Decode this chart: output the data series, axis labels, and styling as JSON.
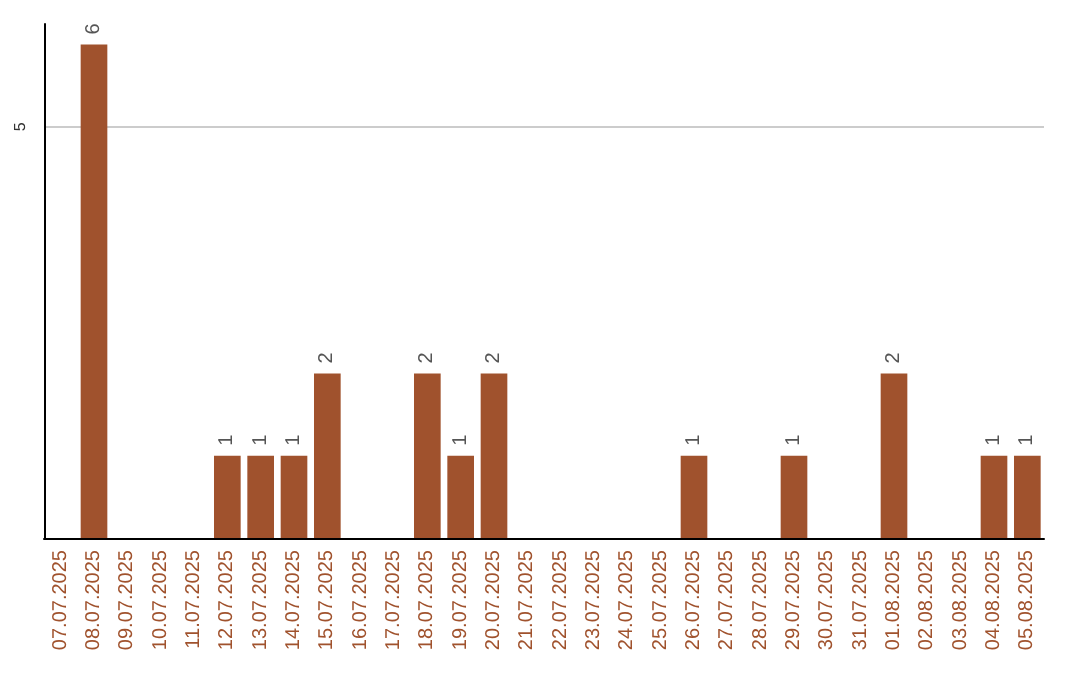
{
  "chart_data": {
    "type": "bar",
    "categories": [
      "07.07.2025",
      "08.07.2025",
      "09.07.2025",
      "10.07.2025",
      "11.07.2025",
      "12.07.2025",
      "13.07.2025",
      "14.07.2025",
      "15.07.2025",
      "16.07.2025",
      "17.07.2025",
      "18.07.2025",
      "19.07.2025",
      "20.07.2025",
      "21.07.2025",
      "22.07.2025",
      "23.07.2025",
      "24.07.2025",
      "25.07.2025",
      "26.07.2025",
      "27.07.2025",
      "28.07.2025",
      "29.07.2025",
      "30.07.2025",
      "31.07.2025",
      "01.08.2025",
      "02.08.2025",
      "03.08.2025",
      "04.08.2025",
      "05.08.2025"
    ],
    "values": [
      0,
      6,
      0,
      0,
      0,
      1,
      1,
      1,
      2,
      0,
      0,
      2,
      1,
      2,
      0,
      0,
      0,
      0,
      0,
      1,
      0,
      0,
      1,
      0,
      0,
      2,
      0,
      0,
      1,
      1
    ],
    "value_labels": [
      null,
      "6",
      null,
      null,
      null,
      "1",
      "1",
      "1",
      "2",
      null,
      null,
      "2",
      "1",
      "2",
      null,
      null,
      null,
      null,
      null,
      "1",
      null,
      null,
      "1",
      null,
      null,
      "2",
      null,
      null,
      "1",
      "1"
    ],
    "color": "#a0522d",
    "ylim": [
      0,
      6.25
    ],
    "yticks": [
      {
        "value": 0,
        "label": null
      },
      5
    ],
    "grid": "y"
  }
}
